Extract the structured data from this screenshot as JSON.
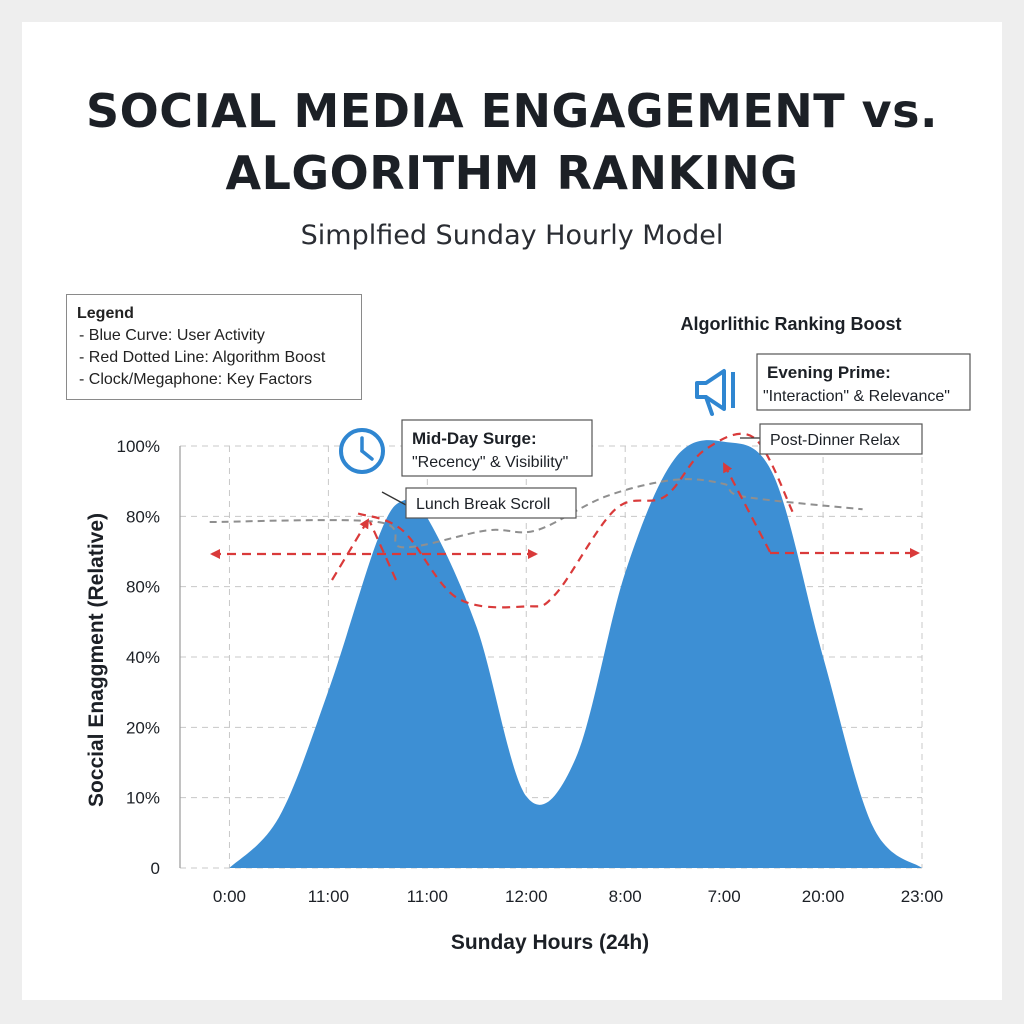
{
  "title_line1": "SOCIAL MEDIA ENGAGEMENT vs.",
  "title_line2": "ALGORITHM RANKING",
  "subtitle": "Simplfied Sunday Hourly Model",
  "legend": {
    "title": "Legend",
    "items": [
      "- Blue Curve: User Activity",
      "- Red Dotted Line: Algorithm Boost",
      "- Clock/Megaphone: Key Factors"
    ]
  },
  "colors": {
    "area": "#3d8fd4",
    "boost": "#d93a3a",
    "gray_line": "#8f8f8f",
    "icon": "#2f86d1"
  },
  "icons": [
    "clock-icon",
    "megaphone-icon"
  ],
  "chart_data": {
    "type": "area",
    "xlabel": "Sunday Hours (24h)",
    "ylabel": "Soccial Enaggment  (Relative)",
    "x_tick_labels": [
      "0:00",
      "11:00",
      "11:00",
      "12:00",
      "8:00",
      "7:00",
      "20:00",
      "23:00"
    ],
    "y_tick_labels": [
      "0",
      "10%",
      "20%",
      "40%",
      "80%",
      "80%",
      "100%"
    ],
    "series": [
      {
        "kind": "area",
        "x": [
          0,
          0.5,
          1,
          1.5,
          1.75,
          2,
          2.5,
          3,
          3.5,
          4,
          4.5,
          5,
          5.5,
          6,
          6.5,
          7
        ],
        "values": [
          0,
          12,
          42,
          78,
          87,
          83,
          57,
          17,
          26,
          70,
          97,
          101,
          93,
          50,
          10,
          0
        ]
      },
      {
        "kind": "boost-line",
        "x": [
          1.3,
          1.75,
          2.3,
          3,
          3.3,
          3.9,
          4.4,
          4.8,
          5.3,
          5.7
        ],
        "values": [
          84,
          80,
          64,
          62,
          65,
          85,
          88,
          99,
          102,
          84
        ]
      },
      {
        "kind": "reference-line",
        "x": [
          -0.2,
          1.5,
          1.75,
          2.6,
          3.1,
          3.8,
          4.5,
          5,
          5.2,
          6.4
        ],
        "values": [
          82,
          82,
          76,
          80,
          80,
          88,
          92,
          91,
          88,
          85
        ]
      }
    ],
    "annotations": {
      "section_label": "Algorlithic Ranking Boost",
      "midday_title": "Mid-Day Surge:",
      "midday_sub": "\"Recency\" & Visibility\"",
      "lunch": "Lunch Break Scroll",
      "evening_title": "Evening Prime:",
      "evening_sub": "\"Interaction\" & Relevance\"",
      "post_dinner": "Post-Dinner Relax"
    },
    "grid": true,
    "xlim": [
      -0.5,
      7
    ],
    "ylim": [
      0,
      100
    ]
  }
}
